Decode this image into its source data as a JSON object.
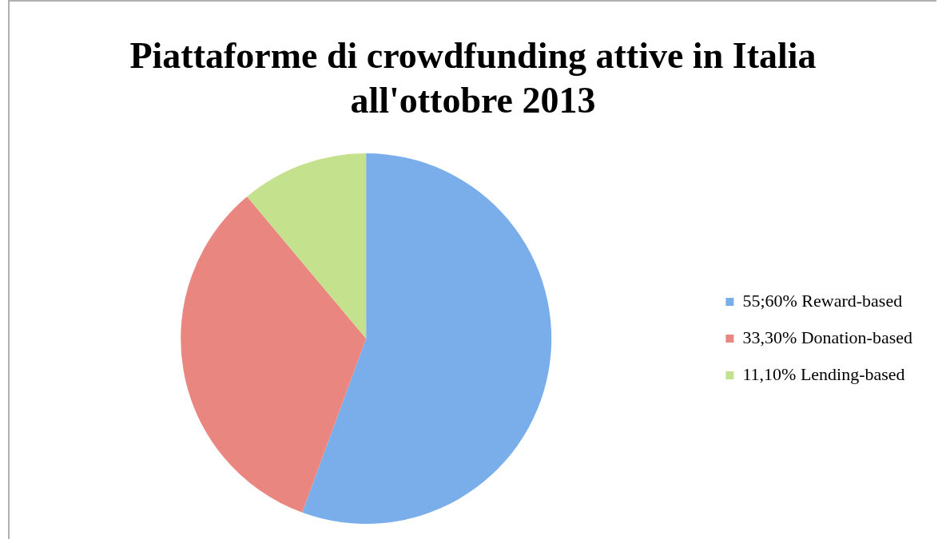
{
  "chart_data": {
    "type": "pie",
    "title": "Piattaforme di crowdfunding attive in Italia all'ottobre 2013",
    "categories": [
      "55;60% Reward-based",
      "33,30% Donation-based",
      "11,10% Lending-based"
    ],
    "values": [
      55.6,
      33.3,
      11.1
    ],
    "colors": [
      "#7aaeea",
      "#ea8680",
      "#c4e28e"
    ],
    "legend": "right"
  }
}
